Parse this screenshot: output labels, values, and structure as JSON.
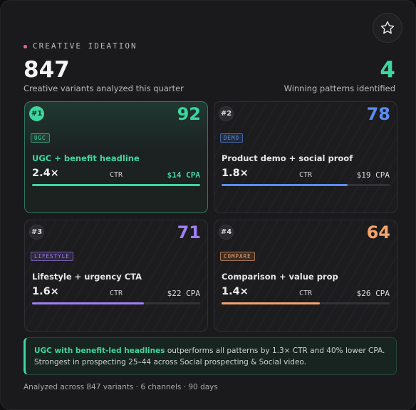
{
  "header": {
    "eyebrow": "CREATIVE IDEATION",
    "total": 847,
    "total_label": "Creative variants analyzed this quarter",
    "winners": 4,
    "winners_label": "Winning patterns identified"
  },
  "cards": [
    {
      "rank": "#1",
      "tag": "UGC",
      "score": 92,
      "title": "UGC + benefit headline",
      "ctr": {
        "value": 2.4,
        "label": "2.4×"
      },
      "ctr_unit": "CTR",
      "cpa": "$14 CPA",
      "color": "#3fd6a0"
    },
    {
      "rank": "#2",
      "tag": "DEMO",
      "score": 78,
      "title": "Product demo + social proof",
      "ctr": {
        "value": 1.8,
        "label": "1.8×"
      },
      "ctr_unit": "CTR",
      "cpa": "$19 CPA",
      "color": "#5b8def"
    },
    {
      "rank": "#3",
      "tag": "LIFESTYLE",
      "score": 71,
      "title": "Lifestyle + urgency CTA",
      "ctr": {
        "value": 1.6,
        "label": "1.6×"
      },
      "ctr_unit": "CTR",
      "cpa": "$22 CPA",
      "color": "#a07ef7"
    },
    {
      "rank": "#4",
      "tag": "COMPARE",
      "score": 64,
      "title": "Comparison + value prop",
      "ctr": {
        "value": 1.4,
        "label": "1.4×"
      },
      "ctr_unit": "CTR",
      "cpa": "$26 CPA",
      "color": "#f4a36b"
    }
  ],
  "insight": {
    "highlight": "UGC with benefit-led headlines",
    "text": " outperforms all patterns by 1.3× CTR and 40% lower CPA.",
    "line2": "Strongest in prospecting 25–44 across Social prospecting & Social video."
  },
  "footer": "Analyzed across 847 variants · 6 channels · 90 days"
}
